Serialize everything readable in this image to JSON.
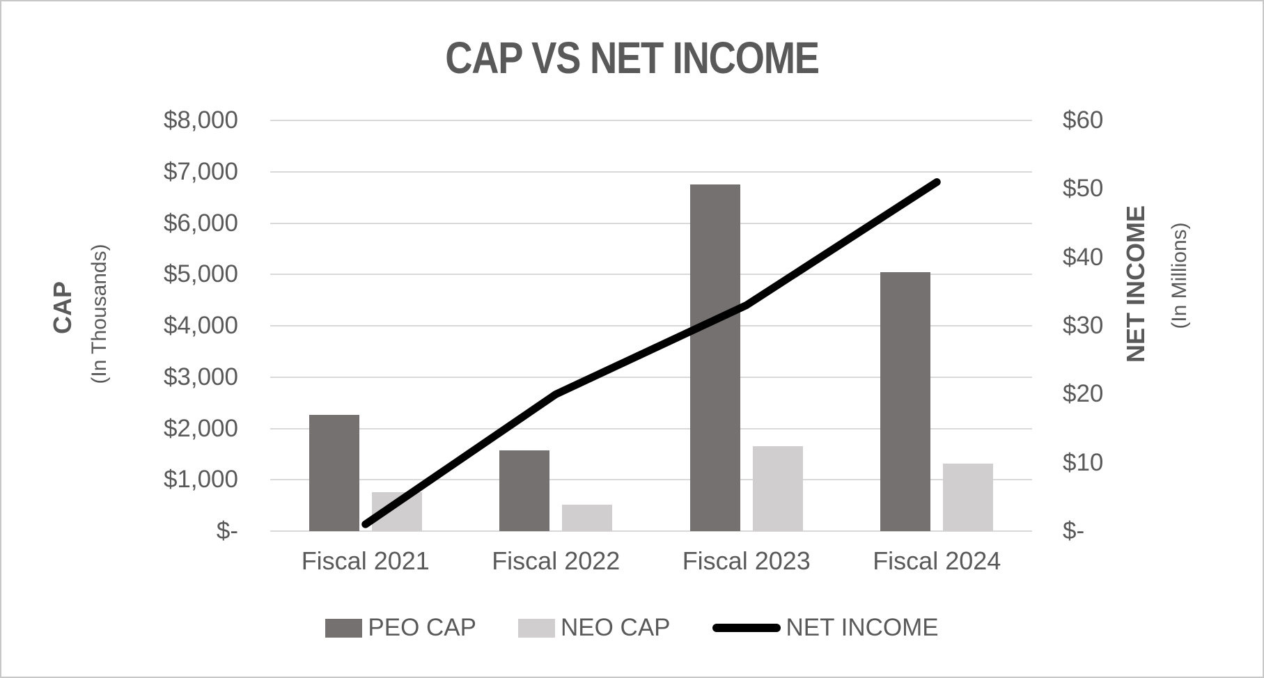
{
  "title": "CAP VS NET INCOME",
  "axes": {
    "left": {
      "title": "CAP",
      "subtitle": "(In Thousands)",
      "ticks": [
        "$8,000",
        "$7,000",
        "$6,000",
        "$5,000",
        "$4,000",
        "$3,000",
        "$2,000",
        "$1,000",
        "$-"
      ]
    },
    "right": {
      "title": "NET INCOME",
      "subtitle": "(In Millions)",
      "ticks": [
        "$60",
        "$50",
        "$40",
        "$30",
        "$20",
        "$10",
        "$-"
      ]
    }
  },
  "chart_data": {
    "type": "combo",
    "title": "CAP VS NET INCOME",
    "categories": [
      "Fiscal 2021",
      "Fiscal 2022",
      "Fiscal 2023",
      "Fiscal 2024"
    ],
    "series": [
      {
        "name": "PEO CAP",
        "type": "bar",
        "axis": "left",
        "color": "#767171",
        "values": [
          2260,
          1570,
          6750,
          5050
        ]
      },
      {
        "name": "NEO CAP",
        "type": "bar",
        "axis": "left",
        "color": "#d0cece",
        "values": [
          760,
          520,
          1650,
          1320
        ]
      },
      {
        "name": "NET INCOME",
        "type": "line",
        "axis": "right",
        "color": "#000000",
        "values": [
          1,
          20,
          33,
          51
        ]
      }
    ],
    "ylabel_left": "CAP (In Thousands)",
    "ylabel_right": "NET INCOME (In Millions)",
    "xlabel": "",
    "left_axis_range": [
      0,
      8000
    ],
    "left_tick_step": 1000,
    "right_axis_range": [
      0,
      60
    ],
    "right_tick_step": 10,
    "grid": true,
    "legend_position": "bottom"
  },
  "legend": {
    "items": [
      {
        "label": "PEO CAP",
        "type": "bar",
        "color": "#767171"
      },
      {
        "label": "NEO CAP",
        "type": "bar",
        "color": "#d0cece"
      },
      {
        "label": "NET INCOME",
        "type": "line",
        "color": "#000000"
      }
    ]
  },
  "colors": {
    "gridline": "#d9d9d9",
    "axis_line": "#d9d9d9",
    "text": "#595959",
    "background": "#ffffff",
    "border": "#c7c7c7"
  }
}
